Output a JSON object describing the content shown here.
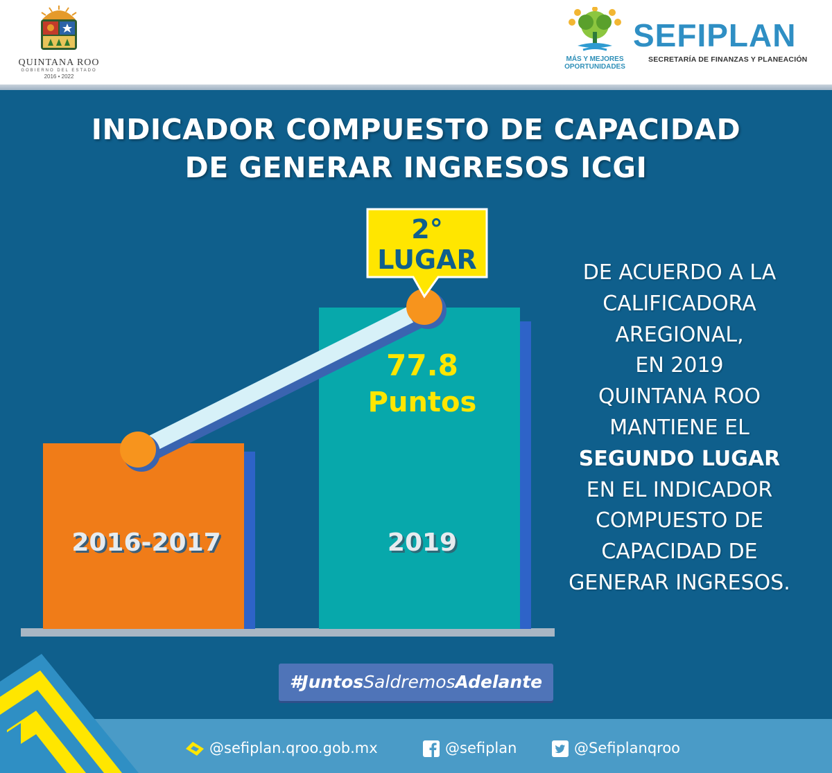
{
  "header": {
    "left_logo": {
      "name": "QUINTANA ROO",
      "subtitle": "GOBIERNO DEL ESTADO",
      "years": "2016 • 2022"
    },
    "center_logo": {
      "line1": "MÁS Y MEJORES",
      "line2": "OPORTUNIDADES"
    },
    "right_logo": {
      "name": "SEFIPLAN",
      "subtitle": "SECRETARÍA DE FINANZAS Y PLANEACIÓN"
    }
  },
  "title": {
    "line1": "INDICADOR COMPUESTO DE CAPACIDAD",
    "line2": "DE GENERAR INGRESOS ICGI"
  },
  "chart_data": {
    "type": "bar",
    "categories": [
      "2016-2017",
      "2019"
    ],
    "bar_colors": [
      "#f07c18",
      "#07a8ab"
    ],
    "trend_line": true,
    "callout": {
      "category": "2019",
      "line1": "2°",
      "line2": "LUGAR"
    },
    "value_label": {
      "category": "2019",
      "value": "77.8",
      "unit": "Puntos"
    }
  },
  "description": {
    "lines": [
      "DE ACUERDO A LA",
      "CALIFICADORA",
      "AREGIONAL,",
      "EN 2019",
      " QUINTANA ROO",
      "MANTIENE EL",
      "SEGUNDO LUGAR",
      "EN EL INDICADOR",
      "COMPUESTO DE",
      "CAPACIDAD DE",
      "GENERAR INGRESOS."
    ],
    "bold_index": 6
  },
  "hashtag": {
    "hash": "#",
    "part1": "Juntos",
    "part2": "Saldremos",
    "part3": "Adelante"
  },
  "footer": {
    "website": "@sefiplan.qroo.gob.mx",
    "facebook": "@sefiplan",
    "twitter": "@Sefiplanqroo"
  },
  "colors": {
    "background": "#0f5f8c",
    "accent_yellow": "#ffe600",
    "footer": "#4a9bc7",
    "dot_orange": "#f7941d"
  }
}
